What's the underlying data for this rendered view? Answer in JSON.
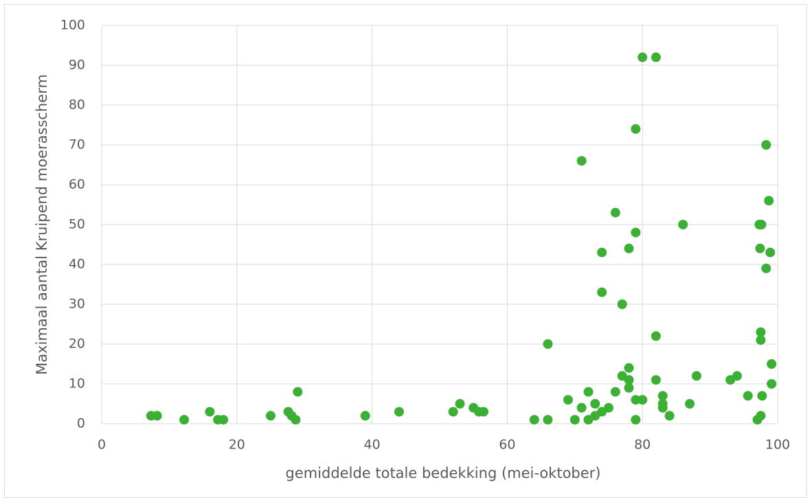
{
  "chart_data": {
    "type": "scatter",
    "x_label": "gemiddelde totale bedekking (mei-oktober)",
    "y_label": "Maximaal aantal Kruipend moerasscherm",
    "color": "#3cb034",
    "grid": true,
    "xlim": [
      0,
      100
    ],
    "xticks": [
      0,
      20,
      40,
      60,
      80,
      100
    ],
    "ylim": [
      0,
      100
    ],
    "yticks": [
      0,
      10,
      20,
      30,
      40,
      50,
      60,
      70,
      80,
      90,
      100
    ],
    "x": [
      7.3,
      8.2,
      12.2,
      16,
      17.2,
      18,
      25,
      27.6,
      28.1,
      28.7,
      29,
      39,
      44,
      52,
      53,
      55,
      55.8,
      56.5,
      64,
      66,
      66,
      69,
      70,
      71,
      71,
      72,
      72,
      73,
      73,
      74,
      74,
      74,
      75,
      76,
      76,
      77,
      77,
      78,
      78,
      78,
      78,
      79,
      79,
      79,
      79,
      80,
      80,
      82,
      82,
      82,
      83,
      83,
      83,
      84,
      86,
      87,
      88,
      93,
      94,
      95.6,
      97,
      97.5,
      97.7,
      97.4,
      97.3,
      97.6,
      97.5,
      97.5,
      98.3,
      98.3,
      98.7,
      98.9,
      99.1,
      99.1
    ],
    "y": [
      2,
      2,
      1,
      3,
      1,
      1,
      2,
      3,
      2,
      1,
      8,
      2,
      3,
      3,
      5,
      4,
      3,
      3,
      1,
      1,
      20,
      6,
      1,
      4,
      66,
      1,
      8,
      2,
      5,
      3,
      33,
      43,
      4,
      8,
      53,
      12,
      30,
      14,
      11,
      9,
      44,
      1,
      6,
      48,
      74,
      6,
      92,
      92,
      11,
      22,
      7,
      5,
      4,
      2,
      50,
      5,
      12,
      11,
      12,
      7,
      1,
      2,
      7,
      44,
      50,
      50,
      23,
      21,
      39,
      70,
      56,
      43,
      15,
      10
    ]
  }
}
